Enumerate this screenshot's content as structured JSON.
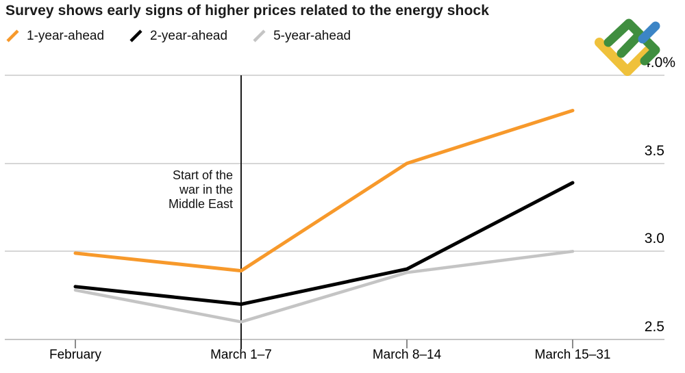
{
  "header": {
    "title": "Survey shows early signs of higher prices related to the energy shock"
  },
  "legend": {
    "items": [
      {
        "label": "1-year-ahead",
        "color": "#F7992B"
      },
      {
        "label": "2-year-ahead",
        "color": "#000000"
      },
      {
        "label": "5-year-ahead",
        "color": "#C4C4C4"
      }
    ]
  },
  "annotation": {
    "text": "Start of the\nwar in the\nMiddle East"
  },
  "logo": {
    "name": "litefinance-logo",
    "colors": {
      "green": "#3F8E3F",
      "blue": "#3C85C6",
      "yellow": "#EFC13B"
    }
  },
  "chart_data": {
    "type": "line",
    "categories": [
      "February",
      "March 1–7",
      "March 8–14",
      "March 15–31"
    ],
    "series": [
      {
        "name": "1-year-ahead",
        "color": "#F7992B",
        "width": 5,
        "values": [
          2.99,
          2.89,
          3.5,
          3.8
        ]
      },
      {
        "name": "2-year-ahead",
        "color": "#000000",
        "width": 5,
        "values": [
          2.8,
          2.7,
          2.9,
          3.39
        ]
      },
      {
        "name": "5-year-ahead",
        "color": "#C4C4C4",
        "width": 4.5,
        "values": [
          2.78,
          2.6,
          2.88,
          3.0
        ]
      }
    ],
    "y_ticks": [
      {
        "label": "4.0%",
        "value": 4.0
      },
      {
        "label": "3.5",
        "value": 3.5
      },
      {
        "label": "3.0",
        "value": 3.0
      },
      {
        "label": "2.5",
        "value": 2.5
      }
    ],
    "ylim": [
      2.5,
      4.0
    ],
    "grid": "horizontal",
    "legend_position": "top-left",
    "event_line": {
      "category": "March 1–7",
      "label": "Start of the war in the Middle East"
    }
  }
}
